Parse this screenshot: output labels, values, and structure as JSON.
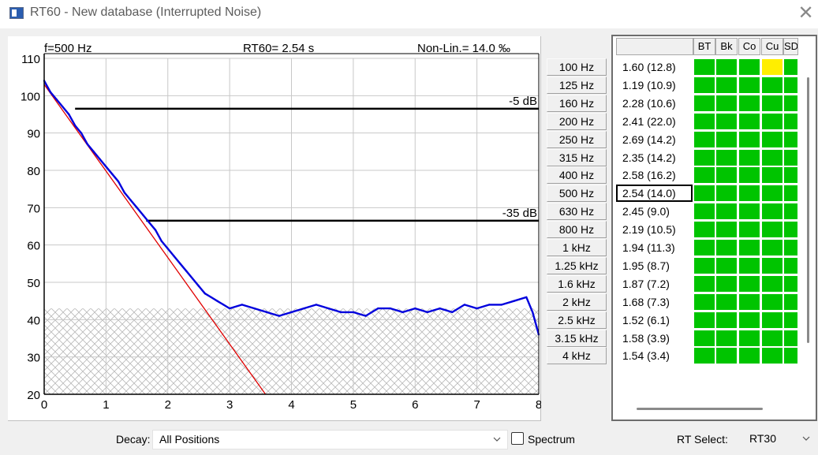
{
  "window": {
    "title": "RT60 - New database (Interrupted Noise)",
    "close_glyph": "✕"
  },
  "chart_data": {
    "type": "line",
    "header": {
      "frequency": "f=500 Hz",
      "rt60": "RT60= 2.54 s",
      "nonlin": "Non-Lin.= 14.0 ‰"
    },
    "x_ticks": [
      "0",
      "1",
      "2",
      "3",
      "4",
      "5",
      "6",
      "7",
      "8"
    ],
    "y_ticks": [
      "110",
      "100",
      "90",
      "80",
      "70",
      "60",
      "50",
      "40",
      "30",
      "20"
    ],
    "xlim": [
      0,
      8
    ],
    "ylim": [
      20,
      110
    ],
    "grid": true,
    "noise_floor_hatch_top": 43,
    "markers": [
      {
        "label": "-5 dB",
        "level": 96.5,
        "x_from": 0.5
      },
      {
        "label": "-35 dB",
        "level": 66.5,
        "x_from": 1.65
      }
    ],
    "regression": {
      "name": "fit",
      "color": "#e00000",
      "x": [
        0,
        3.58
      ],
      "y": [
        103,
        20
      ]
    },
    "series": [
      {
        "color": "#0000dd",
        "x": [
          0,
          0.1,
          0.2,
          0.3,
          0.4,
          0.5,
          0.6,
          0.7,
          0.8,
          0.9,
          1.0,
          1.1,
          1.2,
          1.3,
          1.4,
          1.5,
          1.6,
          1.7,
          1.8,
          1.9,
          2.0,
          2.1,
          2.2,
          2.3,
          2.4,
          2.5,
          2.6,
          2.7,
          2.8,
          2.9,
          3.0,
          3.2,
          3.4,
          3.6,
          3.8,
          4.0,
          4.2,
          4.4,
          4.6,
          4.8,
          5.0,
          5.2,
          5.4,
          5.6,
          5.8,
          6.0,
          6.2,
          6.4,
          6.6,
          6.8,
          7.0,
          7.2,
          7.4,
          7.6,
          7.8,
          7.9,
          8.0
        ],
        "y": [
          104,
          101,
          99,
          97,
          95,
          92,
          90,
          87,
          85,
          83,
          81,
          79,
          77,
          74,
          72,
          70,
          68,
          66,
          64,
          61,
          59,
          57,
          55,
          53,
          51,
          49,
          47,
          46,
          45,
          44,
          43,
          44,
          43,
          42,
          41,
          42,
          43,
          44,
          43,
          42,
          42,
          41,
          43,
          43,
          42,
          43,
          42,
          43,
          42,
          44,
          43,
          44,
          44,
          45,
          46,
          42,
          36
        ]
      }
    ]
  },
  "bands": [
    {
      "freq": "100 Hz",
      "value": "1.60  (12.8)"
    },
    {
      "freq": "125 Hz",
      "value": "1.19  (10.9)"
    },
    {
      "freq": "160 Hz",
      "value": "2.28  (10.6)"
    },
    {
      "freq": "200 Hz",
      "value": "2.41  (22.0)"
    },
    {
      "freq": "250 Hz",
      "value": "2.69  (14.2)"
    },
    {
      "freq": "315 Hz",
      "value": "2.35  (14.2)"
    },
    {
      "freq": "400 Hz",
      "value": "2.58  (16.2)"
    },
    {
      "freq": "500 Hz",
      "value": "2.54  (14.0)"
    },
    {
      "freq": "630 Hz",
      "value": "2.45  (9.0)"
    },
    {
      "freq": "800 Hz",
      "value": "2.19  (10.5)"
    },
    {
      "freq": "1 kHz",
      "value": "1.94  (11.3)"
    },
    {
      "freq": "1.25 kHz",
      "value": "1.95  (8.7)"
    },
    {
      "freq": "1.6 kHz",
      "value": "1.87  (7.2)"
    },
    {
      "freq": "2 kHz",
      "value": "1.68  (7.3)"
    },
    {
      "freq": "2.5 kHz",
      "value": "1.52  (6.1)"
    },
    {
      "freq": "3.15 kHz",
      "value": "1.58  (3.9)"
    },
    {
      "freq": "4 kHz",
      "value": "1.54  (3.4)"
    }
  ],
  "selected_band": "500 Hz",
  "table": {
    "columns": [
      "BT",
      "Bk",
      "Co",
      "Cu",
      "SD"
    ],
    "warning": {
      "row": "100 Hz",
      "column": "Cu"
    },
    "colors": {
      "ok": "#00c400",
      "warn": "#ffee00"
    }
  },
  "footer": {
    "decay_label": "Decay:",
    "decay_value": "All Positions",
    "spectrum_label": "Spectrum",
    "spectrum_checked": false,
    "rt_select_label": "RT Select:",
    "rt_select_value": "RT30"
  }
}
